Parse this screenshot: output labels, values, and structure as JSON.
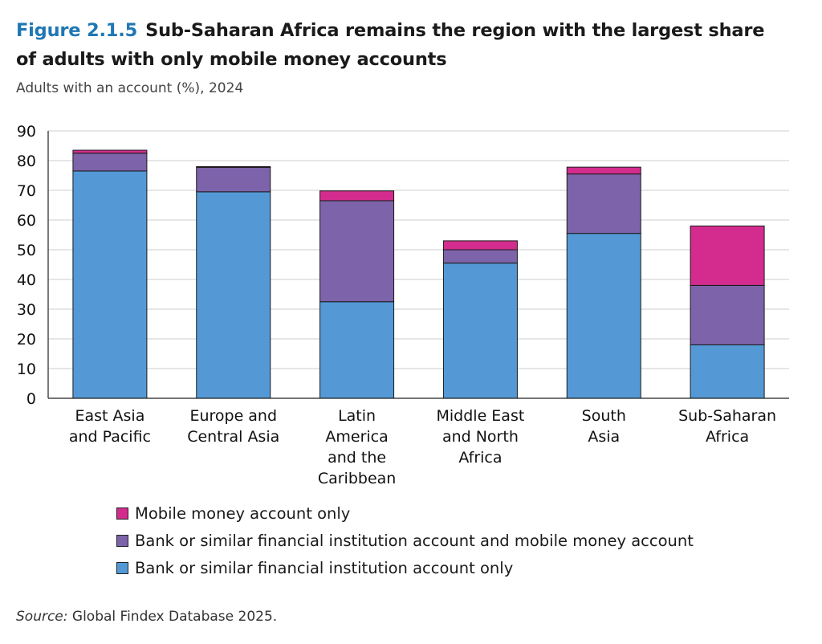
{
  "figure": {
    "number": "Figure 2.1.5",
    "title": "Sub-Saharan Africa remains the region with the largest share of adults with only mobile money accounts",
    "subtitle": "Adults with an account (%), 2024"
  },
  "source": {
    "label": "Source:",
    "text": "Global Findex Database 2025."
  },
  "colors": {
    "bank_only": "#5499d5",
    "bank_and_mobile": "#7d63a9",
    "mobile_only": "#d42c8e",
    "grid": "#cccccc",
    "axis": "#222222"
  },
  "chart_data": {
    "type": "bar",
    "stacked": true,
    "title": "Sub-Saharan Africa remains the region with the largest share of adults with only mobile money accounts",
    "ylabel": "Adults with an account (%), 2024",
    "xlabel": "",
    "ylim": [
      0,
      90
    ],
    "yticks": [
      0,
      10,
      20,
      30,
      40,
      50,
      60,
      70,
      80,
      90
    ],
    "grid": true,
    "legend_position": "bottom",
    "categories": [
      [
        "East Asia",
        "and Pacific"
      ],
      [
        "Europe and",
        "Central Asia"
      ],
      [
        "Latin",
        "America",
        "and the",
        "Caribbean"
      ],
      [
        "Middle East",
        "and North",
        "Africa"
      ],
      [
        "South",
        "Asia"
      ],
      [
        "Sub-Saharan",
        "Africa"
      ]
    ],
    "series": [
      {
        "key": "bank_only",
        "name": "Bank or similar financial institution account only",
        "values": [
          76.5,
          69.5,
          32.5,
          45.5,
          55.5,
          18.0
        ]
      },
      {
        "key": "bank_and_mobile",
        "name": "Bank or similar financial institution account and mobile money account",
        "values": [
          6.0,
          8.2,
          34.0,
          4.5,
          20.0,
          20.0
        ]
      },
      {
        "key": "mobile_only",
        "name": "Mobile money account only",
        "values": [
          1.0,
          0.3,
          3.3,
          3.0,
          2.3,
          20.0
        ]
      }
    ],
    "legend_order": [
      "mobile_only",
      "bank_and_mobile",
      "bank_only"
    ]
  }
}
